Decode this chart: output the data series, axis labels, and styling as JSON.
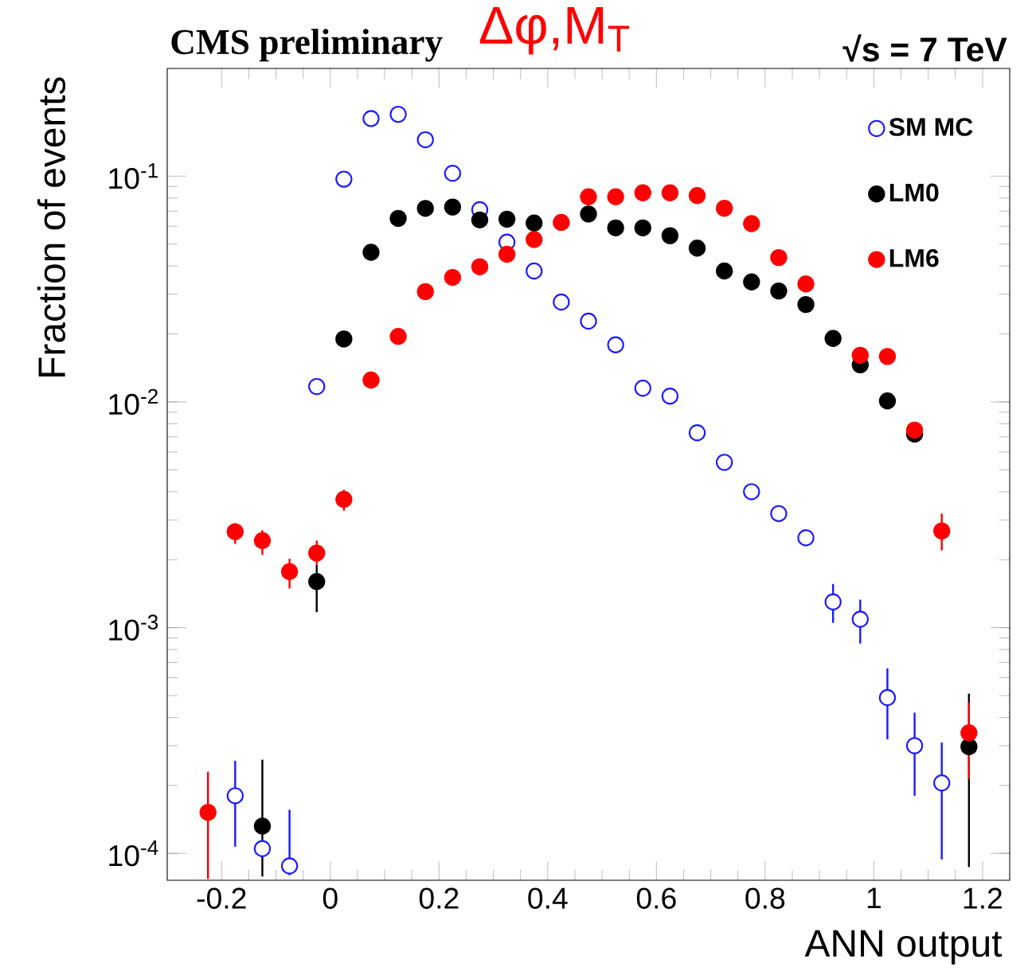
{
  "chart_data": {
    "type": "scatter",
    "title": "Δφ,M$_{T}$",
    "annotations": [
      "CMS preliminary",
      "√s = 7 TeV"
    ],
    "xlabel": "ANN output",
    "ylabel": "Fraction of events",
    "x": [
      -0.225,
      -0.175,
      -0.125,
      -0.075,
      -0.025,
      0.025,
      0.075,
      0.125,
      0.175,
      0.225,
      0.275,
      0.325,
      0.375,
      0.425,
      0.475,
      0.525,
      0.575,
      0.625,
      0.675,
      0.725,
      0.775,
      0.825,
      0.875,
      0.925,
      0.975,
      1.025,
      1.075,
      1.125,
      1.175
    ],
    "series": [
      {
        "name": "SM MC",
        "color": "#1a1aff",
        "values": [
          null,
          0.00018,
          0.000105,
          8.8e-05,
          0.0117,
          0.097,
          0.18,
          0.188,
          0.145,
          0.103,
          0.071,
          0.051,
          0.038,
          0.0277,
          0.0228,
          0.0179,
          0.0115,
          0.0106,
          0.0073,
          0.0054,
          0.004,
          0.0032,
          0.0025,
          0.0013,
          0.00109,
          0.00049,
          0.0003,
          0.000205,
          null
        ],
        "errors": [
          null,
          [
            0.000107,
            0.000257
          ],
          null,
          [
            8e-05,
            0.000156
          ],
          null,
          null,
          null,
          null,
          null,
          null,
          null,
          null,
          null,
          null,
          null,
          null,
          null,
          null,
          null,
          null,
          null,
          null,
          null,
          [
            0.00105,
            0.00156
          ],
          [
            0.00085,
            0.00133
          ],
          [
            0.00032,
            0.00066
          ],
          [
            0.00018,
            0.00042
          ],
          [
            9.4e-05,
            0.00031
          ],
          null
        ]
      },
      {
        "name": "LM0",
        "color": "#000000",
        "values": [
          null,
          null,
          0.000132,
          null,
          0.0016,
          0.019,
          0.046,
          0.065,
          0.072,
          0.073,
          0.064,
          0.0645,
          0.062,
          null,
          0.068,
          0.059,
          0.059,
          0.0545,
          0.048,
          0.038,
          0.034,
          0.031,
          0.027,
          0.0191,
          0.0146,
          0.0101,
          0.0072,
          null,
          0.000297
        ],
        "errors": [
          null,
          null,
          [
            7.9e-05,
            0.00026
          ],
          null,
          [
            0.00117,
            0.0019
          ],
          null,
          null,
          null,
          null,
          null,
          null,
          null,
          null,
          null,
          null,
          null,
          null,
          null,
          null,
          null,
          null,
          null,
          null,
          null,
          null,
          null,
          null,
          null,
          [
            8.7e-05,
            0.00051
          ]
        ]
      },
      {
        "name": "LM6",
        "color": "#ff0000",
        "values": [
          0.000152,
          0.00266,
          0.00243,
          0.00177,
          0.00214,
          0.0037,
          0.0125,
          0.0195,
          0.0308,
          0.0356,
          0.0397,
          0.0451,
          0.0524,
          0.0624,
          0.081,
          0.081,
          0.0844,
          0.0844,
          0.082,
          0.0721,
          0.0616,
          0.0436,
          0.0333,
          null,
          0.0161,
          0.0159,
          0.0075,
          0.00268,
          0.000342
        ],
        "errors": [
          [
            7.7e-05,
            0.00023
          ],
          [
            0.00235,
            0.0029
          ],
          [
            0.0021,
            0.0027
          ],
          [
            0.00149,
            0.00202
          ],
          [
            0.0019,
            0.00243
          ],
          [
            0.0033,
            0.00408
          ],
          null,
          null,
          null,
          null,
          null,
          null,
          null,
          null,
          null,
          null,
          null,
          null,
          null,
          null,
          null,
          null,
          null,
          null,
          null,
          null,
          null,
          [
            0.0022,
            0.0032
          ],
          [
            0.000213,
            0.000466
          ]
        ]
      }
    ],
    "xlim": [
      -0.3,
      1.25
    ],
    "xticks": [
      -0.2,
      0,
      0.2,
      0.4,
      0.6,
      0.8,
      1,
      1.2
    ],
    "ylim": [
      7.6e-05,
      0.3
    ],
    "yticks": [
      {
        "value": 0.0001,
        "label": "10$^{-4}$"
      },
      {
        "value": 0.001,
        "label": "10$^{-3}$"
      },
      {
        "value": 0.01,
        "label": "10$^{-2}$"
      },
      {
        "value": 0.1,
        "label": "10$^{-1}$"
      }
    ],
    "log": "y",
    "legend": "top right",
    "marker": "circle"
  }
}
